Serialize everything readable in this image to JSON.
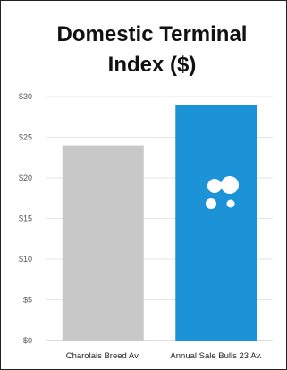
{
  "chart_data": {
    "type": "bar",
    "title": "Domestic Terminal Index ($)",
    "title_lines": [
      "Domestic Terminal",
      "Index ($)"
    ],
    "categories": [
      "Charolais Breed Av.",
      "Annual Sale Bulls 23 Av."
    ],
    "values": [
      24,
      29
    ],
    "colors": [
      "#c8c8c8",
      "#1b93d6"
    ],
    "ylim": [
      0,
      30
    ],
    "yticks": [
      0,
      5,
      10,
      15,
      20,
      25,
      30
    ],
    "ytick_labels": [
      "$0",
      "$5",
      "$10",
      "$15",
      "$20",
      "$25",
      "$30"
    ],
    "grid": true,
    "xlabel": "",
    "ylabel": ""
  },
  "logo": {
    "icon": "four-dots-logo-icon",
    "color": "#ffffff"
  }
}
